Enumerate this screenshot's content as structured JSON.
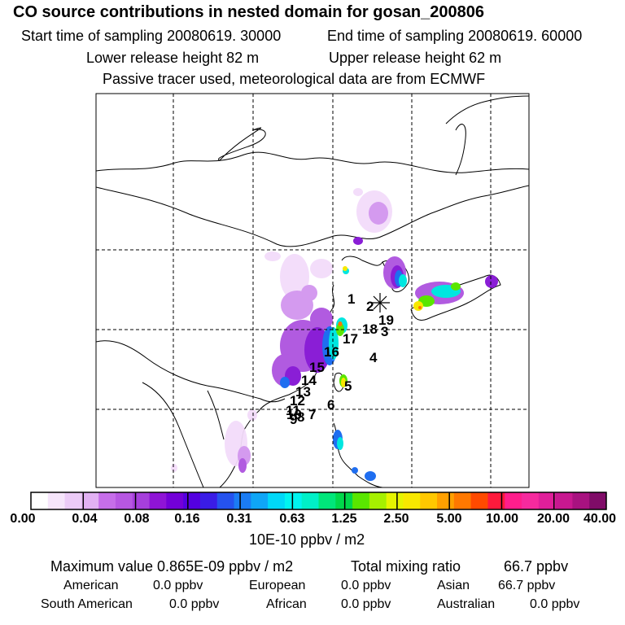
{
  "header": {
    "title": "CO  source contributions in nested domain for gosan_200806",
    "start_label": "Start time of sampling 20080619. 30000",
    "end_label": "End time of sampling 20080619. 60000",
    "lower_label": "Lower release height   82 m",
    "upper_label": "Upper release height   62 m",
    "note": "Passive tracer used, meteorological data are from ECMWF"
  },
  "map": {
    "station_marker": "asterisk-icon",
    "labels": [
      "1",
      "2",
      "19",
      "18",
      "3",
      "17",
      "16",
      "4",
      "15",
      "14",
      "5",
      "13",
      "12",
      "11",
      "10",
      "9",
      "8",
      "6",
      "7"
    ]
  },
  "colorbar": {
    "colors": [
      "#ffffff",
      "#f6e5fb",
      "#eccbf7",
      "#e2b1f3",
      "#c66ee9",
      "#b757e2",
      "#a63fdc",
      "#8f14d6",
      "#7300d8",
      "#5400e0",
      "#3a1ce6",
      "#2552ee",
      "#1b7cf4",
      "#0fa6f6",
      "#00d8f8",
      "#00f4f0",
      "#00f0c8",
      "#00e67a",
      "#00d84a",
      "#5ae600",
      "#a6f000",
      "#e6f400",
      "#f8e800",
      "#ffc800",
      "#ffa000",
      "#ff7800",
      "#ff4a00",
      "#ff1a3c",
      "#ff1e8c",
      "#f62a9e",
      "#e01f9a",
      "#c81890",
      "#a81280",
      "#800c68"
    ],
    "ticks": [
      "0.00",
      "0.04",
      "0.08",
      "0.16",
      "0.31",
      "0.63",
      "1.25",
      "2.50",
      "5.00",
      "10.00",
      "20.00",
      "40.00"
    ],
    "units": "10E-10 ppbv / m2"
  },
  "stats": {
    "max_label": "Maximum value  0.865E-09 ppbv / m2",
    "total_label": "Total mixing ratio",
    "total_value": "66.7 ppbv",
    "american_label": "American",
    "american_value": "0.0 ppbv",
    "european_label": "European",
    "european_value": "0.0 ppbv",
    "asian_label": "Asian",
    "asian_value": "66.7 ppbv",
    "south_american_label": "South American",
    "south_american_value": "0.0 ppbv",
    "african_label": "African",
    "african_value": "0.0 ppbv",
    "australian_label": "Australian",
    "australian_value": "0.0 ppbv"
  }
}
